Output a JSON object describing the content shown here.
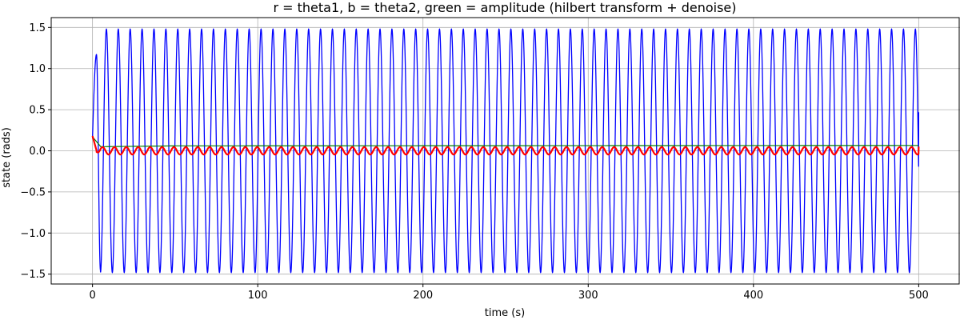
{
  "chart_data": {
    "type": "line",
    "title": "r = theta1, b = theta2, green = amplitude (hilbert transform + denoise)",
    "xlabel": "time (s)",
    "ylabel": "state (rads)",
    "xlim": [
      -25,
      525
    ],
    "ylim": [
      -1.62,
      1.62
    ],
    "xticks": [
      0,
      100,
      200,
      300,
      400,
      500
    ],
    "xtick_labels": [
      "0",
      "100",
      "200",
      "300",
      "400",
      "500"
    ],
    "yticks": [
      -1.5,
      -1.0,
      -0.5,
      0.0,
      0.5,
      1.0,
      1.5
    ],
    "ytick_labels": [
      "−1.5",
      "−1.0",
      "−0.5",
      "0.0",
      "0.5",
      "1.0",
      "1.5"
    ],
    "grid": true,
    "legend": "none",
    "series": [
      {
        "color": "#0000ff",
        "description_points": {
          "x": [
            0,
            2.4,
            4.8,
            7.2,
            9.6,
            500
          ],
          "y": [
            0.15,
            1.17,
            -1.45,
            1.48,
            -1.48,
            0.47
          ]
        },
        "oscillation": {
          "amplitude": 1.48,
          "period": 7.2,
          "x_start": 0,
          "x_end": 500
        }
      },
      {
        "color": "#ff0000",
        "description_points": {
          "x": [
            0,
            2.5,
            500
          ],
          "y": [
            0.18,
            0.0,
            0.05
          ]
        },
        "oscillation": {
          "amplitude": 0.045,
          "period": 7.2,
          "x_start": 0,
          "x_end": 500
        }
      },
      {
        "color": "#008000",
        "description_points": {
          "x": [
            0,
            5,
            50,
            500
          ],
          "y": [
            0.17,
            0.05,
            0.06,
            0.065
          ]
        }
      }
    ]
  }
}
